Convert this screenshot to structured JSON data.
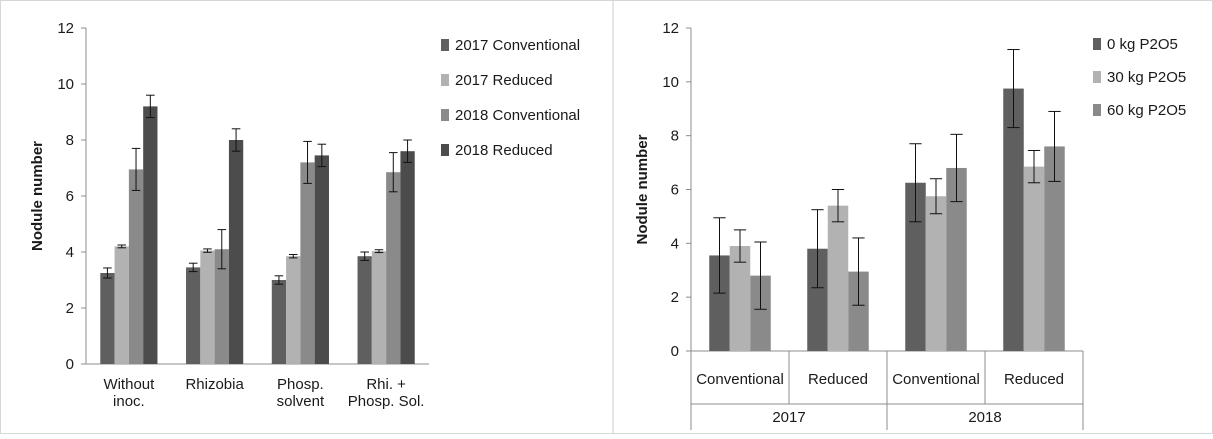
{
  "chart_data": [
    {
      "type": "bar",
      "title": "",
      "xlabel": "",
      "ylabel": "Nodule number",
      "ylim": [
        0,
        12
      ],
      "yticks": [
        0,
        2,
        4,
        6,
        8,
        10,
        12
      ],
      "grid": false,
      "legend_position": "right",
      "error_bars": true,
      "categories": [
        [
          "Without",
          "inoc."
        ],
        [
          "Rhizobia"
        ],
        [
          "Phosp.",
          "solvent"
        ],
        [
          "Rhi. +",
          "Phosp. Sol."
        ]
      ],
      "series": [
        {
          "name": "2017 Conventional",
          "color": "#5f5f5f",
          "values": [
            3.25,
            3.45,
            3.0,
            3.85
          ],
          "errors": [
            0.18,
            0.15,
            0.15,
            0.15
          ]
        },
        {
          "name": "2017 Reduced",
          "color": "#b2b2b2",
          "values": [
            4.2,
            4.05,
            3.85,
            4.03
          ],
          "errors": [
            0.05,
            0.06,
            0.06,
            0.05
          ]
        },
        {
          "name": "2018 Conventional",
          "color": "#8a8a8a",
          "values": [
            6.95,
            4.1,
            7.2,
            6.85
          ],
          "errors": [
            0.75,
            0.7,
            0.75,
            0.7
          ]
        },
        {
          "name": "2018 Reduced",
          "color": "#4c4c4c",
          "values": [
            9.2,
            8.0,
            7.45,
            7.6
          ],
          "errors": [
            0.4,
            0.4,
            0.4,
            0.4
          ]
        }
      ]
    },
    {
      "type": "bar",
      "title": "",
      "xlabel": "",
      "ylabel": "Nodule number",
      "ylim": [
        0,
        12
      ],
      "yticks": [
        0,
        2,
        4,
        6,
        8,
        10,
        12
      ],
      "grid": false,
      "legend_position": "right",
      "error_bars": true,
      "categories": [
        "Conventional",
        "Reduced",
        "Conventional",
        "Reduced"
      ],
      "category_groups": [
        {
          "label": "2017",
          "span": 2
        },
        {
          "label": "2018",
          "span": 2
        }
      ],
      "series": [
        {
          "name": "0 kg P2O5",
          "color": "#5f5f5f",
          "values": [
            3.55,
            3.8,
            6.25,
            9.75
          ],
          "errors": [
            1.4,
            1.45,
            1.45,
            1.45
          ]
        },
        {
          "name": "30 kg P2O5",
          "color": "#b2b2b2",
          "values": [
            3.9,
            5.4,
            5.75,
            6.85
          ],
          "errors": [
            0.6,
            0.6,
            0.65,
            0.6
          ]
        },
        {
          "name": "60 kg P2O5",
          "color": "#8a8a8a",
          "values": [
            2.8,
            2.95,
            6.8,
            7.6
          ],
          "errors": [
            1.25,
            1.25,
            1.25,
            1.3
          ]
        }
      ]
    }
  ]
}
